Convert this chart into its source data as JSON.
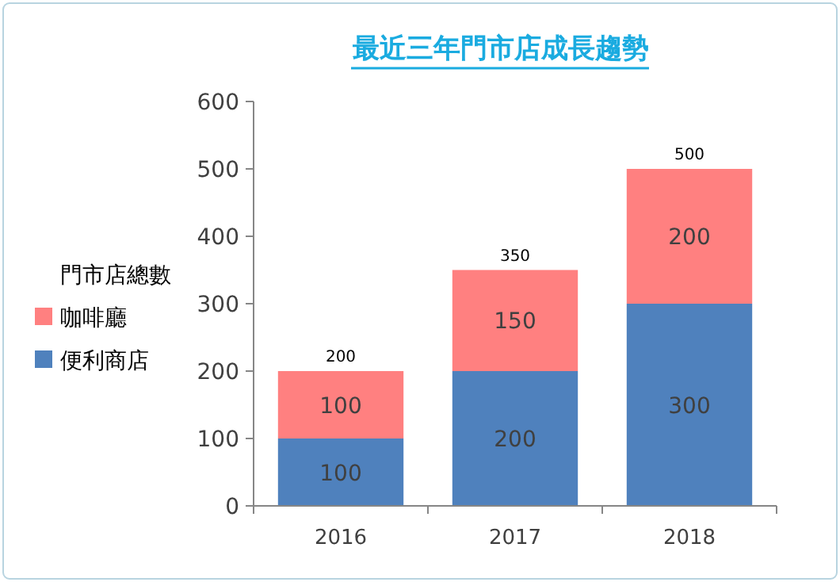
{
  "chart_data": {
    "type": "bar",
    "title": "最近三年門市店成長趨勢",
    "legend_title": "門市店總數",
    "categories": [
      "2016",
      "2017",
      "2018"
    ],
    "stacked": true,
    "data_labels": true,
    "legend": "left",
    "series": [
      {
        "name": "便利商店",
        "color": "#4f81bd",
        "values": [
          100,
          200,
          300
        ]
      },
      {
        "name": "咖啡廳",
        "color": "#ff8080",
        "values": [
          100,
          150,
          200
        ]
      }
    ],
    "totals": [
      "200",
      "350",
      "500"
    ],
    "ylim": [
      0,
      600
    ],
    "yticks": [
      0,
      100,
      200,
      300,
      400,
      500,
      600
    ],
    "grid": false
  }
}
